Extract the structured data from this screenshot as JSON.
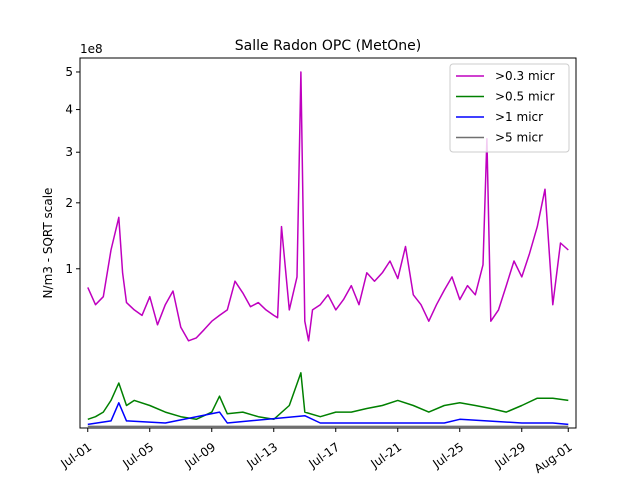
{
  "chart_data": {
    "type": "line",
    "title": "Salle Radon OPC (MetOne)",
    "ylabel": "N/m3 - SQRT scale",
    "xlabel": "",
    "y_offset_label": "1e8",
    "y_scale": "sqrt",
    "y_units_multiplier": 100000000,
    "ylim": [
      0,
      5.4
    ],
    "xlim": [
      "2023-06-30T12:00",
      "2023-08-01T12:00"
    ],
    "x_ticks": [
      {
        "date": "2023-07-01",
        "label": "Jul-01"
      },
      {
        "date": "2023-07-05",
        "label": "Jul-05"
      },
      {
        "date": "2023-07-09",
        "label": "Jul-09"
      },
      {
        "date": "2023-07-13",
        "label": "Jul-13"
      },
      {
        "date": "2023-07-17",
        "label": "Jul-17"
      },
      {
        "date": "2023-07-21",
        "label": "Jul-21"
      },
      {
        "date": "2023-07-25",
        "label": "Jul-25"
      },
      {
        "date": "2023-07-29",
        "label": "Jul-29"
      },
      {
        "date": "2023-08-01",
        "label": "Aug-01"
      }
    ],
    "y_ticks": [
      {
        "value": 1,
        "label": "1"
      },
      {
        "value": 2,
        "label": "2"
      },
      {
        "value": 3,
        "label": "3"
      },
      {
        "value": 4,
        "label": "4"
      },
      {
        "value": 5,
        "label": "5"
      }
    ],
    "grid": false,
    "legend_position": "top-right",
    "series": [
      {
        "name": ">0.3 micr",
        "color": "#bf00bf",
        "x": [
          "2023-07-01T00:00",
          "2023-07-01T12:00",
          "2023-07-02T00:00",
          "2023-07-02T12:00",
          "2023-07-03T00:00",
          "2023-07-03T06:00",
          "2023-07-03T12:00",
          "2023-07-04T00:00",
          "2023-07-04T12:00",
          "2023-07-05T00:00",
          "2023-07-05T12:00",
          "2023-07-06T00:00",
          "2023-07-06T12:00",
          "2023-07-07T00:00",
          "2023-07-07T12:00",
          "2023-07-08T00:00",
          "2023-07-08T12:00",
          "2023-07-09T00:00",
          "2023-07-09T12:00",
          "2023-07-10T00:00",
          "2023-07-10T12:00",
          "2023-07-11T00:00",
          "2023-07-11T12:00",
          "2023-07-12T00:00",
          "2023-07-12T12:00",
          "2023-07-13T00:00",
          "2023-07-13T06:00",
          "2023-07-13T12:00",
          "2023-07-14T00:00",
          "2023-07-14T12:00",
          "2023-07-14T18:00",
          "2023-07-15T00:00",
          "2023-07-15T06:00",
          "2023-07-15T12:00",
          "2023-07-16T00:00",
          "2023-07-16T12:00",
          "2023-07-17T00:00",
          "2023-07-17T12:00",
          "2023-07-18T00:00",
          "2023-07-18T12:00",
          "2023-07-19T00:00",
          "2023-07-19T12:00",
          "2023-07-20T00:00",
          "2023-07-20T12:00",
          "2023-07-21T00:00",
          "2023-07-21T12:00",
          "2023-07-22T00:00",
          "2023-07-22T12:00",
          "2023-07-23T00:00",
          "2023-07-23T12:00",
          "2023-07-24T00:00",
          "2023-07-24T12:00",
          "2023-07-25T00:00",
          "2023-07-25T12:00",
          "2023-07-26T00:00",
          "2023-07-26T12:00",
          "2023-07-26T18:00",
          "2023-07-27T00:00",
          "2023-07-27T12:00",
          "2023-07-28T00:00",
          "2023-07-28T12:00",
          "2023-07-29T00:00",
          "2023-07-29T12:00",
          "2023-07-30T00:00",
          "2023-07-30T12:00",
          "2023-07-31T00:00",
          "2023-07-31T12:00",
          "2023-08-01T00:00"
        ],
        "values": [
          0.78,
          0.6,
          0.68,
          1.25,
          1.75,
          0.95,
          0.62,
          0.55,
          0.5,
          0.68,
          0.42,
          0.6,
          0.74,
          0.4,
          0.3,
          0.32,
          0.38,
          0.45,
          0.5,
          0.55,
          0.85,
          0.72,
          0.58,
          0.62,
          0.55,
          0.5,
          0.48,
          1.6,
          0.55,
          0.9,
          5.0,
          0.45,
          0.3,
          0.55,
          0.6,
          0.7,
          0.55,
          0.65,
          0.8,
          0.6,
          0.95,
          0.85,
          0.95,
          1.1,
          0.88,
          1.3,
          0.7,
          0.6,
          0.45,
          0.6,
          0.75,
          0.9,
          0.65,
          0.8,
          0.7,
          1.05,
          3.3,
          0.45,
          0.55,
          0.8,
          1.1,
          0.9,
          1.2,
          1.6,
          2.25,
          0.6,
          1.35,
          1.25
        ]
      },
      {
        "name": ">0.5 micr",
        "color": "#008000",
        "x": [
          "2023-07-01T00:00",
          "2023-07-01T12:00",
          "2023-07-02T00:00",
          "2023-07-02T12:00",
          "2023-07-03T00:00",
          "2023-07-03T12:00",
          "2023-07-04T00:00",
          "2023-07-05T00:00",
          "2023-07-06T00:00",
          "2023-07-07T00:00",
          "2023-07-08T00:00",
          "2023-07-09T00:00",
          "2023-07-09T12:00",
          "2023-07-10T00:00",
          "2023-07-11T00:00",
          "2023-07-12T00:00",
          "2023-07-13T00:00",
          "2023-07-14T00:00",
          "2023-07-14T18:00",
          "2023-07-15T00:00",
          "2023-07-16T00:00",
          "2023-07-17T00:00",
          "2023-07-18T00:00",
          "2023-07-19T00:00",
          "2023-07-20T00:00",
          "2023-07-21T00:00",
          "2023-07-22T00:00",
          "2023-07-23T00:00",
          "2023-07-24T00:00",
          "2023-07-25T00:00",
          "2023-07-26T00:00",
          "2023-07-27T00:00",
          "2023-07-28T00:00",
          "2023-07-29T00:00",
          "2023-07-30T00:00",
          "2023-07-31T00:00",
          "2023-08-01T00:00"
        ],
        "values": [
          0.003,
          0.005,
          0.01,
          0.03,
          0.08,
          0.02,
          0.03,
          0.02,
          0.01,
          0.005,
          0.003,
          0.01,
          0.04,
          0.008,
          0.01,
          0.005,
          0.003,
          0.02,
          0.12,
          0.01,
          0.005,
          0.01,
          0.01,
          0.015,
          0.02,
          0.03,
          0.02,
          0.01,
          0.02,
          0.025,
          0.02,
          0.015,
          0.01,
          0.02,
          0.035,
          0.035,
          0.03
        ]
      },
      {
        "name": ">1 micr",
        "color": "#0000ff",
        "x": [
          "2023-07-01T00:00",
          "2023-07-02T12:00",
          "2023-07-03T00:00",
          "2023-07-03T12:00",
          "2023-07-06T00:00",
          "2023-07-09T12:00",
          "2023-07-10T00:00",
          "2023-07-15T00:00",
          "2023-07-16T00:00",
          "2023-07-24T00:00",
          "2023-07-25T00:00",
          "2023-07-29T00:00",
          "2023-07-31T00:00",
          "2023-08-01T00:00"
        ],
        "values": [
          0.0005,
          0.002,
          0.025,
          0.002,
          0.001,
          0.01,
          0.001,
          0.006,
          0.001,
          0.001,
          0.003,
          0.001,
          0.001,
          0.0005
        ]
      },
      {
        "name": ">5 micr",
        "color": "#707070",
        "x": [
          "2023-07-01T00:00",
          "2023-08-01T00:00"
        ],
        "values": [
          0.0001,
          0.0001
        ]
      }
    ]
  }
}
